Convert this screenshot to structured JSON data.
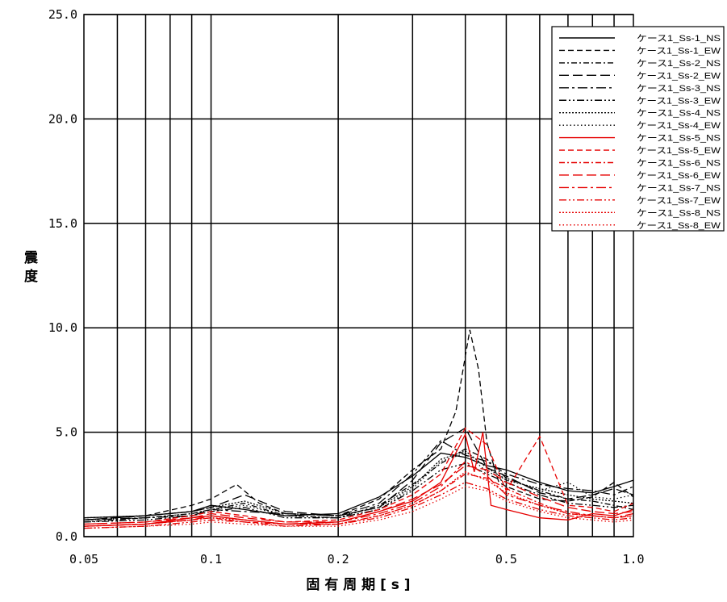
{
  "chart_data": {
    "type": "line",
    "xlabel": "固 有 周 期 [ s ]",
    "ylabel": "震 度",
    "xscale": "log",
    "xlim": [
      0.05,
      1.0
    ],
    "ylim": [
      0,
      25
    ],
    "grid": true,
    "legend_position": "top-right",
    "xticks": [
      {
        "v": 0.05,
        "label": "0.05"
      },
      {
        "v": 0.1,
        "label": "0.1"
      },
      {
        "v": 0.2,
        "label": "0.2"
      },
      {
        "v": 0.5,
        "label": "0.5"
      },
      {
        "v": 1.0,
        "label": "1.0"
      }
    ],
    "xgrid": [
      0.06,
      0.07,
      0.08,
      0.09,
      0.1,
      0.2,
      0.3,
      0.4,
      0.5,
      0.6,
      0.7,
      0.8,
      0.9
    ],
    "yticks": [
      {
        "v": 0,
        "label": "0.0"
      },
      {
        "v": 5,
        "label": "5.0"
      },
      {
        "v": 10,
        "label": "10.0"
      },
      {
        "v": 15,
        "label": "15.0"
      },
      {
        "v": 20,
        "label": "20.0"
      },
      {
        "v": 25,
        "label": "25.0"
      }
    ],
    "series": [
      {
        "name": "ケース1_Ss-1_NS",
        "color": "#000000",
        "dash": "solid",
        "x": [
          0.05,
          0.07,
          0.09,
          0.1,
          0.12,
          0.15,
          0.2,
          0.25,
          0.3,
          0.35,
          0.4,
          0.45,
          0.5,
          0.6,
          0.7,
          0.8,
          0.9,
          1.0
        ],
        "y": [
          0.9,
          1.0,
          1.2,
          1.5,
          1.3,
          1.0,
          1.1,
          1.9,
          2.9,
          4.0,
          3.8,
          3.4,
          3.2,
          2.6,
          2.2,
          2.1,
          2.4,
          2.7
        ]
      },
      {
        "name": "ケース1_Ss-1_EW",
        "color": "#000000",
        "dash": "dash",
        "x": [
          0.05,
          0.07,
          0.09,
          0.1,
          0.115,
          0.13,
          0.15,
          0.2,
          0.25,
          0.3,
          0.35,
          0.38,
          0.41,
          0.43,
          0.45,
          0.48,
          0.5,
          0.6,
          0.7,
          0.8,
          0.9,
          1.0
        ],
        "y": [
          0.8,
          1.0,
          1.5,
          1.8,
          2.5,
          1.6,
          1.1,
          1.0,
          1.8,
          3.2,
          4.2,
          6.0,
          9.9,
          8.0,
          4.5,
          2.6,
          2.4,
          1.8,
          1.7,
          1.9,
          2.6,
          1.9
        ]
      },
      {
        "name": "ケース1_Ss-2_NS",
        "color": "#000000",
        "dash": "dashdot",
        "x": [
          0.05,
          0.07,
          0.09,
          0.1,
          0.12,
          0.15,
          0.2,
          0.25,
          0.3,
          0.35,
          0.4,
          0.45,
          0.5,
          0.6,
          0.7,
          0.8,
          0.9,
          1.0
        ],
        "y": [
          0.7,
          0.9,
          1.1,
          1.3,
          1.6,
          1.0,
          0.9,
          1.5,
          2.5,
          3.5,
          4.2,
          3.7,
          2.8,
          2.2,
          1.8,
          1.7,
          1.5,
          1.3
        ]
      },
      {
        "name": "ケース1_Ss-2_EW",
        "color": "#000000",
        "dash": "longdash",
        "x": [
          0.05,
          0.07,
          0.09,
          0.1,
          0.12,
          0.15,
          0.2,
          0.25,
          0.3,
          0.35,
          0.4,
          0.45,
          0.5,
          0.6,
          0.7,
          0.8,
          0.9,
          1.0
        ],
        "y": [
          0.8,
          1.0,
          1.2,
          1.4,
          2.0,
          1.2,
          1.0,
          1.4,
          2.7,
          4.5,
          5.2,
          3.3,
          2.9,
          2.1,
          1.8,
          2.0,
          2.3,
          2.0
        ]
      },
      {
        "name": "ケース1_Ss-3_NS",
        "color": "#000000",
        "dash": "longdashdot",
        "x": [
          0.05,
          0.07,
          0.09,
          0.1,
          0.12,
          0.15,
          0.2,
          0.25,
          0.3,
          0.35,
          0.4,
          0.45,
          0.5,
          0.6,
          0.7,
          0.8,
          0.9,
          1.0
        ],
        "y": [
          0.8,
          0.9,
          1.0,
          1.3,
          1.2,
          1.1,
          1.0,
          1.6,
          3.0,
          4.6,
          3.9,
          3.6,
          3.0,
          2.5,
          2.3,
          2.2,
          2.0,
          2.4
        ]
      },
      {
        "name": "ケース1_Ss-3_EW",
        "color": "#000000",
        "dash": "dashdotdot",
        "x": [
          0.05,
          0.07,
          0.09,
          0.1,
          0.12,
          0.15,
          0.2,
          0.25,
          0.3,
          0.35,
          0.4,
          0.45,
          0.5,
          0.6,
          0.7,
          0.8,
          0.9,
          1.0
        ],
        "y": [
          0.7,
          0.8,
          1.0,
          1.2,
          1.4,
          0.9,
          0.9,
          1.3,
          2.2,
          3.2,
          3.5,
          3.0,
          2.6,
          2.0,
          1.6,
          1.5,
          1.4,
          1.5
        ]
      },
      {
        "name": "ケース1_Ss-4_NS",
        "color": "#000000",
        "dash": "densedot",
        "x": [
          0.05,
          0.07,
          0.09,
          0.1,
          0.12,
          0.15,
          0.2,
          0.25,
          0.3,
          0.35,
          0.4,
          0.45,
          0.5,
          0.6,
          0.7,
          0.8,
          0.9,
          1.0
        ],
        "y": [
          0.9,
          1.0,
          1.2,
          1.4,
          1.7,
          1.1,
          1.0,
          1.4,
          2.4,
          3.7,
          4.1,
          3.3,
          2.7,
          2.3,
          2.0,
          1.8,
          1.7,
          1.6
        ]
      },
      {
        "name": "ケース1_Ss-4_EW",
        "color": "#000000",
        "dash": "dot",
        "x": [
          0.05,
          0.07,
          0.09,
          0.1,
          0.12,
          0.15,
          0.2,
          0.25,
          0.3,
          0.35,
          0.4,
          0.45,
          0.5,
          0.6,
          0.7,
          0.8,
          0.9,
          1.0
        ],
        "y": [
          0.8,
          0.9,
          1.1,
          1.3,
          1.5,
          1.0,
          0.9,
          1.3,
          2.3,
          3.6,
          4.0,
          3.1,
          2.8,
          2.2,
          2.6,
          1.9,
          1.8,
          2.0
        ]
      },
      {
        "name": "ケース1_Ss-5_NS",
        "color": "#e60000",
        "dash": "solid",
        "x": [
          0.05,
          0.07,
          0.09,
          0.1,
          0.12,
          0.15,
          0.2,
          0.25,
          0.3,
          0.35,
          0.4,
          0.42,
          0.44,
          0.46,
          0.5,
          0.6,
          0.7,
          0.8,
          0.9,
          1.0
        ],
        "y": [
          0.5,
          0.6,
          0.9,
          1.0,
          0.8,
          0.6,
          0.7,
          1.2,
          1.7,
          2.6,
          4.9,
          3.1,
          5.0,
          1.5,
          1.3,
          0.9,
          0.8,
          1.1,
          1.0,
          1.3
        ]
      },
      {
        "name": "ケース1_Ss-5_EW",
        "color": "#e60000",
        "dash": "dash",
        "x": [
          0.05,
          0.07,
          0.09,
          0.1,
          0.12,
          0.15,
          0.2,
          0.25,
          0.3,
          0.35,
          0.4,
          0.45,
          0.5,
          0.6,
          0.7,
          0.8,
          0.9,
          1.0
        ],
        "y": [
          0.6,
          0.7,
          1.0,
          1.2,
          1.0,
          0.7,
          0.8,
          1.3,
          2.0,
          3.0,
          5.2,
          4.4,
          2.2,
          4.8,
          1.5,
          1.4,
          1.2,
          1.6
        ]
      },
      {
        "name": "ケース1_Ss-6_NS",
        "color": "#e60000",
        "dash": "dashdot",
        "x": [
          0.05,
          0.07,
          0.09,
          0.1,
          0.12,
          0.15,
          0.2,
          0.25,
          0.3,
          0.35,
          0.4,
          0.45,
          0.5,
          0.6,
          0.7,
          0.8,
          0.9,
          1.0
        ],
        "y": [
          0.5,
          0.6,
          0.8,
          0.9,
          0.7,
          0.6,
          0.6,
          1.0,
          1.5,
          2.2,
          3.0,
          2.8,
          2.3,
          1.6,
          1.1,
          1.0,
          0.9,
          1.0
        ]
      },
      {
        "name": "ケース1_Ss-6_EW",
        "color": "#e60000",
        "dash": "longdash",
        "x": [
          0.05,
          0.07,
          0.09,
          0.1,
          0.12,
          0.15,
          0.2,
          0.25,
          0.3,
          0.35,
          0.4,
          0.45,
          0.5,
          0.6,
          0.7,
          0.8,
          0.9,
          1.0
        ],
        "y": [
          0.6,
          0.7,
          0.9,
          1.1,
          0.9,
          0.7,
          0.7,
          1.2,
          1.8,
          2.5,
          3.4,
          3.2,
          2.6,
          1.9,
          1.4,
          1.2,
          1.1,
          1.2
        ]
      },
      {
        "name": "ケース1_Ss-7_NS",
        "color": "#e60000",
        "dash": "longdashdot",
        "x": [
          0.05,
          0.07,
          0.09,
          0.1,
          0.12,
          0.15,
          0.2,
          0.25,
          0.3,
          0.35,
          0.4,
          0.45,
          0.5,
          0.6,
          0.7,
          0.8,
          0.9,
          1.0
        ],
        "y": [
          0.5,
          0.6,
          0.8,
          1.0,
          0.8,
          0.6,
          0.7,
          1.1,
          1.6,
          2.4,
          3.6,
          2.9,
          2.0,
          1.5,
          1.2,
          1.0,
          0.9,
          1.1
        ]
      },
      {
        "name": "ケース1_Ss-7_EW",
        "color": "#e60000",
        "dash": "dashdotdot",
        "x": [
          0.05,
          0.07,
          0.09,
          0.1,
          0.12,
          0.15,
          0.2,
          0.25,
          0.3,
          0.35,
          0.4,
          0.45,
          0.5,
          0.6,
          0.7,
          0.8,
          0.9,
          1.0
        ],
        "y": [
          0.4,
          0.5,
          0.7,
          0.8,
          0.7,
          0.5,
          0.6,
          0.9,
          1.4,
          2.0,
          2.6,
          2.3,
          1.8,
          1.3,
          1.0,
          0.9,
          0.8,
          0.9
        ]
      },
      {
        "name": "ケース1_Ss-8_NS",
        "color": "#e60000",
        "dash": "densedot",
        "x": [
          0.05,
          0.07,
          0.09,
          0.1,
          0.12,
          0.15,
          0.2,
          0.25,
          0.3,
          0.35,
          0.4,
          0.45,
          0.5,
          0.6,
          0.7,
          0.8,
          0.9,
          1.0
        ],
        "y": [
          0.5,
          0.6,
          0.8,
          0.9,
          0.8,
          0.6,
          0.6,
          1.0,
          1.5,
          2.2,
          3.1,
          2.7,
          2.1,
          1.5,
          1.1,
          1.0,
          0.9,
          1.0
        ]
      },
      {
        "name": "ケース1_Ss-8_EW",
        "color": "#e60000",
        "dash": "dot",
        "x": [
          0.05,
          0.07,
          0.09,
          0.1,
          0.12,
          0.15,
          0.2,
          0.25,
          0.3,
          0.35,
          0.4,
          0.45,
          0.5,
          0.6,
          0.7,
          0.8,
          0.9,
          1.0
        ],
        "y": [
          0.4,
          0.5,
          0.6,
          0.7,
          0.6,
          0.5,
          0.5,
          0.8,
          1.2,
          1.8,
          2.4,
          2.2,
          1.7,
          1.2,
          0.9,
          0.8,
          0.7,
          0.8
        ]
      }
    ]
  }
}
